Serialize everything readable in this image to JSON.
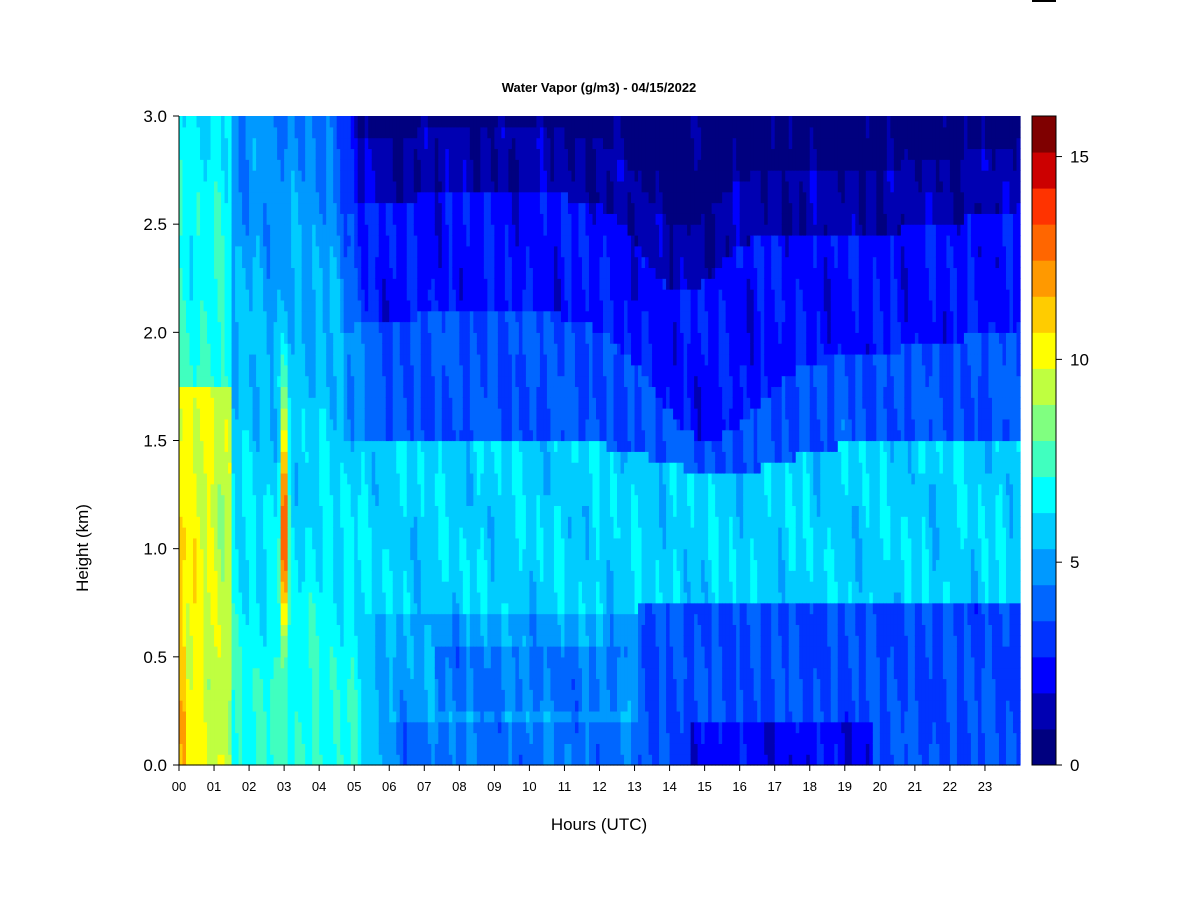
{
  "chart_data": {
    "type": "heatmap",
    "title": "Water Vapor (g/m3) - 04/15/2022",
    "xlabel": "Hours (UTC)",
    "ylabel": "Height (km)",
    "xlim": [
      0,
      24
    ],
    "ylim": [
      0,
      3
    ],
    "x_ticks": [
      "00",
      "01",
      "02",
      "03",
      "04",
      "05",
      "06",
      "07",
      "08",
      "09",
      "10",
      "11",
      "12",
      "13",
      "14",
      "15",
      "16",
      "17",
      "18",
      "19",
      "20",
      "21",
      "22",
      "23"
    ],
    "y_ticks": [
      "0.0",
      "0.5",
      "1.0",
      "1.5",
      "2.0",
      "2.5",
      "3.0"
    ],
    "colorbar": {
      "min": 0,
      "max": 16,
      "ticks": [
        "0",
        "5",
        "10",
        "15"
      ],
      "colors": [
        "#00007f",
        "#0000b2",
        "#0000ff",
        "#0033ff",
        "#0066ff",
        "#0099ff",
        "#00ccff",
        "#00ffff",
        "#40ffbf",
        "#80ff80",
        "#bfff40",
        "#ffff00",
        "#ffcc00",
        "#ff9900",
        "#ff6600",
        "#ff3300",
        "#cc0000",
        "#7f0000"
      ]
    },
    "grid": false,
    "description_levels": [
      {
        "x": [
          0,
          1.4
        ],
        "y": [
          0,
          1.7
        ],
        "value": 10
      },
      {
        "x": [
          2.9,
          3.15
        ],
        "y": [
          0.6,
          1.7
        ],
        "value": 15
      },
      {
        "x": [
          0,
          4.7
        ],
        "y": [
          0,
          3
        ],
        "value": 7
      },
      {
        "x": [
          6,
          24
        ],
        "y": [
          0.7,
          1.4
        ],
        "value": 6
      },
      {
        "x": [
          6,
          24
        ],
        "y": [
          0,
          0.2
        ],
        "value": 4
      },
      {
        "x": [
          14.6,
          19.8
        ],
        "y": [
          0,
          0.2
        ],
        "value": 2
      },
      {
        "x": [
          7,
          24
        ],
        "y": [
          2.4,
          3
        ],
        "value": 0.5
      }
    ]
  }
}
